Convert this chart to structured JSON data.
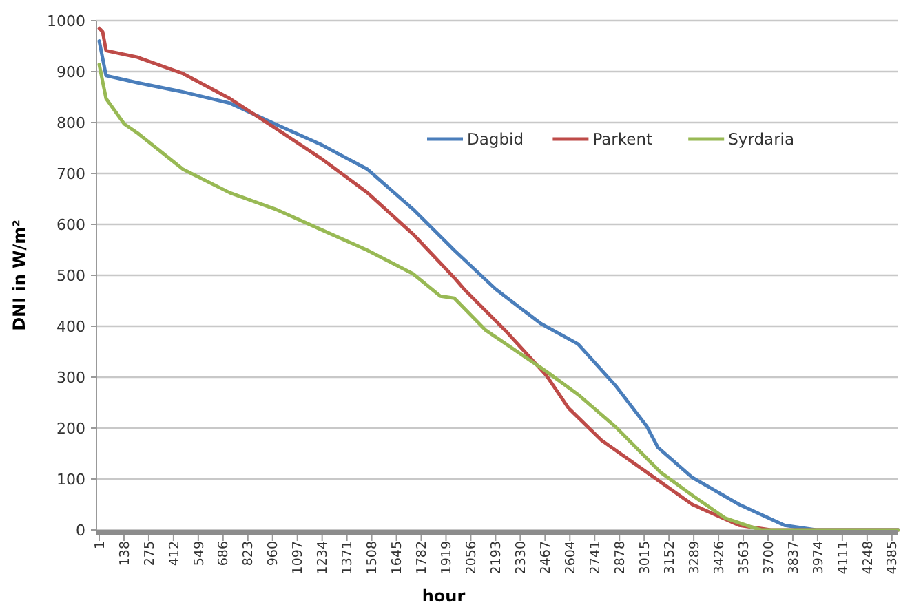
{
  "chart_data": {
    "type": "line",
    "xlabel": "hour",
    "ylabel": "DNI in W/m²",
    "xlim": [
      1,
      4420
    ],
    "ylim": [
      0,
      1000
    ],
    "xticks": [
      1,
      138,
      275,
      412,
      549,
      686,
      823,
      960,
      1097,
      1234,
      1371,
      1508,
      1645,
      1782,
      1919,
      2056,
      2193,
      2330,
      2467,
      2604,
      2741,
      2878,
      3015,
      3152,
      3289,
      3426,
      3563,
      3700,
      3837,
      3974,
      4111,
      4248,
      4385
    ],
    "yticks": [
      0,
      100,
      200,
      300,
      400,
      500,
      600,
      700,
      800,
      900,
      1000
    ],
    "grid": "y",
    "legend": "top right",
    "line_style": "solid",
    "series": [
      {
        "name": "Dagbid",
        "color": "#4a7ebb",
        "x": [
          1,
          39,
          214,
          465,
          724,
          975,
          1226,
          1485,
          1736,
          1965,
          2193,
          2444,
          2649,
          2855,
          3030,
          3091,
          3281,
          3540,
          3791,
          3966,
          4420
        ],
        "values": [
          960,
          892,
          878,
          860,
          838,
          797,
          757,
          708,
          630,
          549,
          473,
          405,
          365,
          284,
          203,
          162,
          103,
          50,
          9,
          0,
          0
        ]
      },
      {
        "name": "Parkent",
        "color": "#be4b48",
        "x": [
          1,
          20,
          39,
          214,
          465,
          724,
          975,
          1226,
          1485,
          1736,
          1965,
          2018,
          2246,
          2475,
          2597,
          2779,
          3030,
          3281,
          3540,
          3715,
          4420
        ],
        "values": [
          985,
          978,
          941,
          928,
          896,
          847,
          789,
          730,
          662,
          581,
          495,
          473,
          392,
          303,
          239,
          176,
          113,
          50,
          9,
          0,
          0
        ]
      },
      {
        "name": "Syrdaria",
        "color": "#98b954",
        "x": [
          1,
          39,
          140,
          214,
          465,
          724,
          975,
          1226,
          1485,
          1736,
          1888,
          1965,
          2139,
          2475,
          2649,
          2855,
          3106,
          3281,
          3464,
          3616,
          3662,
          4420
        ],
        "values": [
          914,
          847,
          797,
          779,
          708,
          662,
          630,
          590,
          549,
          503,
          459,
          455,
          392,
          311,
          266,
          203,
          113,
          68,
          23,
          5,
          0,
          0
        ]
      }
    ]
  }
}
